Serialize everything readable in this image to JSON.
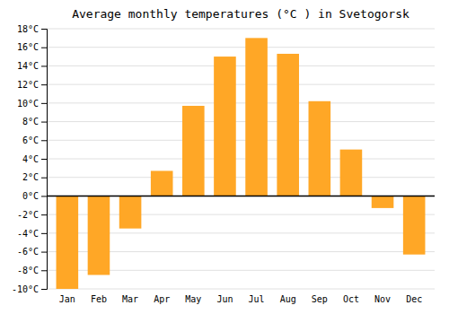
{
  "chart_data": {
    "type": "bar",
    "title": "Average monthly temperatures (°C ) in Svetogorsk",
    "categories": [
      "Jan",
      "Feb",
      "Mar",
      "Apr",
      "May",
      "Jun",
      "Jul",
      "Aug",
      "Sep",
      "Oct",
      "Nov",
      "Dec"
    ],
    "values": [
      -10,
      -8.5,
      -3.5,
      2.7,
      9.7,
      15.0,
      17.0,
      15.3,
      10.2,
      5.0,
      -1.3,
      -6.3
    ],
    "color": "#FFA726",
    "ylim": [
      -10,
      18
    ],
    "yticks": [
      {
        "value": -10,
        "label": "-10°C"
      },
      {
        "value": -8,
        "label": "-8°C"
      },
      {
        "value": -6,
        "label": "-6°C"
      },
      {
        "value": -4,
        "label": "-4°C"
      },
      {
        "value": -2,
        "label": "-2°C"
      },
      {
        "value": 0,
        "label": "0°C"
      },
      {
        "value": 2,
        "label": "2°C"
      },
      {
        "value": 4,
        "label": "4°C"
      },
      {
        "value": 6,
        "label": "6°C"
      },
      {
        "value": 8,
        "label": "8°C"
      },
      {
        "value": 10,
        "label": "10°C"
      },
      {
        "value": 12,
        "label": "12°C"
      },
      {
        "value": 14,
        "label": "14°C"
      },
      {
        "value": 16,
        "label": "16°C"
      },
      {
        "value": 18,
        "label": "18°C"
      }
    ],
    "grid": true
  }
}
